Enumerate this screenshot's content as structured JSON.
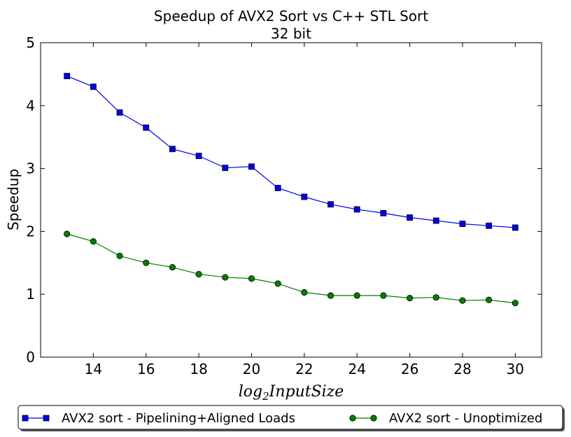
{
  "chart_data": {
    "type": "line",
    "title": "Speedup of AVX2 Sort vs C++ STL Sort",
    "subtitle": "32 bit",
    "xlabel": "log",
    "xlabel_sub": "2",
    "xlabel_rest": "InputSize",
    "ylabel": "Speedup",
    "xlim": [
      12,
      31
    ],
    "ylim": [
      0,
      5
    ],
    "xticks": [
      14,
      16,
      18,
      20,
      22,
      24,
      26,
      28,
      30
    ],
    "yticks": [
      0,
      1,
      2,
      3,
      4,
      5
    ],
    "grid": false,
    "legend_position": "bottom",
    "x": [
      13,
      14,
      15,
      16,
      17,
      18,
      19,
      20,
      21,
      22,
      23,
      24,
      25,
      26,
      27,
      28,
      29,
      30
    ],
    "series": [
      {
        "name": "AVX2 sort - Pipelining+Aligned Loads",
        "color": "#0000ee",
        "marker": "square",
        "values": [
          4.47,
          4.3,
          3.89,
          3.65,
          3.31,
          3.2,
          3.01,
          3.03,
          2.69,
          2.55,
          2.43,
          2.35,
          2.29,
          2.22,
          2.17,
          2.12,
          2.09,
          2.06
        ]
      },
      {
        "name": "AVX2 sort - Unoptimized",
        "color": "#007f00",
        "marker": "circle",
        "values": [
          1.96,
          1.84,
          1.61,
          1.5,
          1.43,
          1.32,
          1.27,
          1.25,
          1.17,
          1.03,
          0.98,
          0.98,
          0.98,
          0.94,
          0.95,
          0.9,
          0.91,
          0.86
        ]
      }
    ]
  }
}
